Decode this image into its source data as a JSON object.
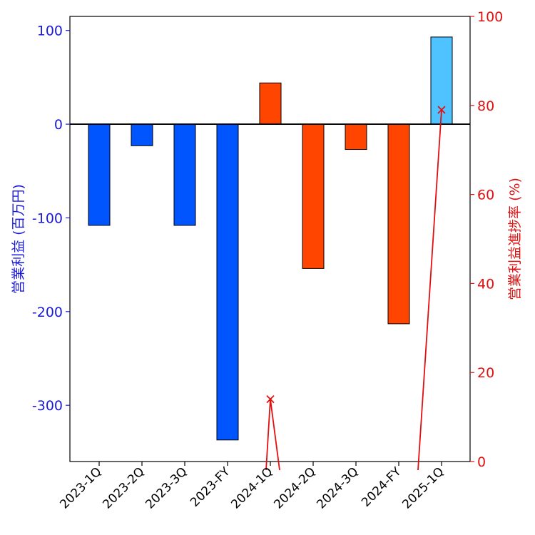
{
  "chart_data": {
    "type": "bar",
    "categories": [
      "2023-1Q",
      "2023-2Q",
      "2023-3Q",
      "2023-FY",
      "2024-1Q",
      "2024-2Q",
      "2024-3Q",
      "2024-FY",
      "2025-1Q"
    ],
    "series": [
      {
        "values": [
          -108,
          -23,
          -108,
          -337,
          44,
          -154,
          -27,
          -213,
          93
        ],
        "bar_colors": [
          "#0055ff",
          "#0055ff",
          "#0055ff",
          "#0055ff",
          "#ff4500",
          "#ff4500",
          "#ff4500",
          "#ff4500",
          "#4fc3ff"
        ],
        "axis": "left"
      },
      {
        "type": "line",
        "values": [
          null,
          null,
          null,
          null,
          14,
          null,
          null,
          null,
          79
        ],
        "line_values_with_drops": [
          null,
          null,
          null,
          null,
          0,
          14,
          0,
          null,
          null,
          0,
          79
        ],
        "color": "#e01010",
        "marker": "x",
        "axis": "right"
      }
    ],
    "xlabel": "",
    "ylabel_left": "営業利益 (百万円)",
    "ylabel_right": "営業利益進捗率 (%)",
    "ylim_left": [
      -360,
      115
    ],
    "ylim_right": [
      0,
      100
    ],
    "left_ticks": [
      100,
      0,
      -100,
      -200,
      -300
    ],
    "right_ticks": [
      100,
      80,
      60,
      40,
      20,
      0
    ],
    "zero_line": true,
    "grid": false,
    "left_axis_color": "#1a1adc",
    "right_axis_color": "#e01010"
  }
}
